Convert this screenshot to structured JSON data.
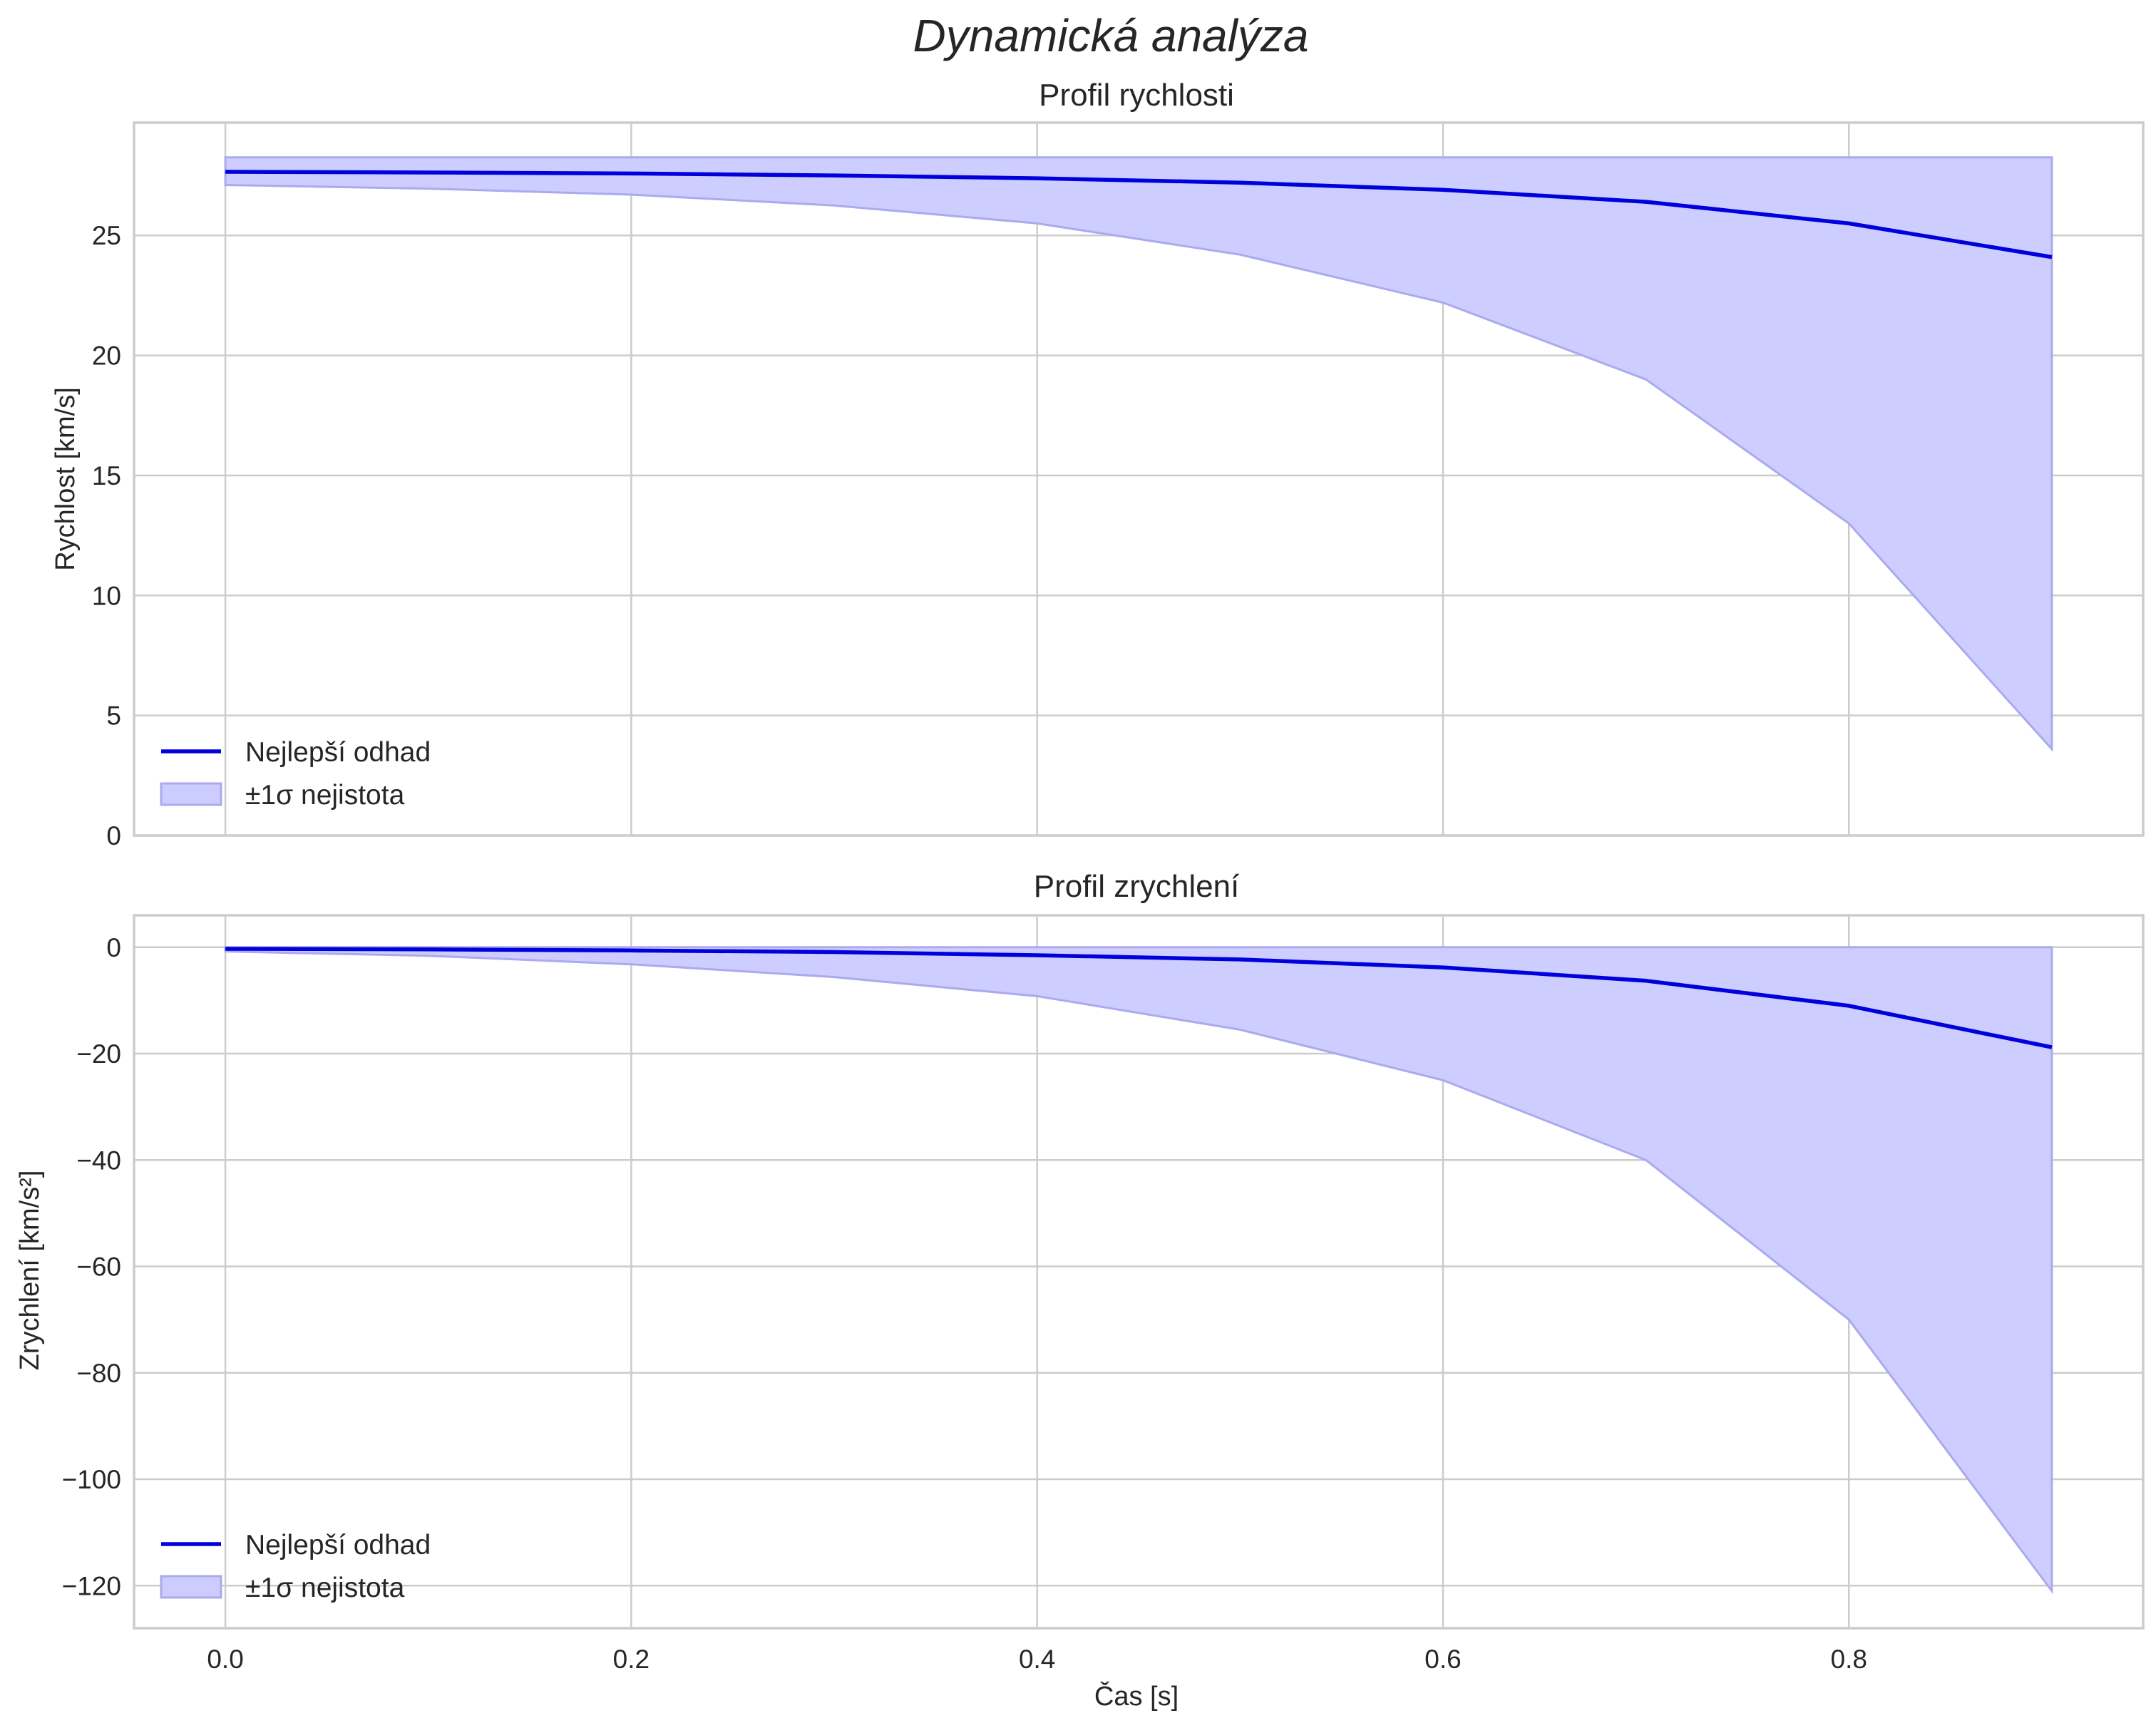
{
  "chart_data": {
    "title": "Dynamická analýza",
    "xlabel": "Čas [s]",
    "shared_x": true,
    "xlim": [
      -0.045,
      0.945
    ],
    "x_ticks": [
      "0.0",
      "0.2",
      "0.4",
      "0.6",
      "0.8"
    ],
    "colors": {
      "line": "#0000dd",
      "band_fill": "#ccccff",
      "band_edge": "#aaaaee",
      "grid": "#cccccc"
    },
    "panels": [
      {
        "type": "line",
        "title": "Profil rychlosti",
        "ylabel": "Rychlost [km/s]",
        "ylim": [
          0,
          29.7
        ],
        "y_ticks": [
          "0",
          "5",
          "10",
          "15",
          "20",
          "25"
        ],
        "legend_position": "lower-left",
        "legend": [
          "Nejlepší odhad",
          "±1σ nejistota"
        ],
        "x": [
          0.0,
          0.1,
          0.2,
          0.3,
          0.4,
          0.5,
          0.6,
          0.7,
          0.8,
          0.9
        ],
        "series": [
          {
            "name": "Nejlepší odhad",
            "values": [
              27.65,
              27.62,
              27.58,
              27.5,
              27.38,
              27.2,
              26.9,
              26.4,
              25.5,
              24.1
            ]
          },
          {
            "name": "±1σ nejistota lower",
            "values": [
              27.1,
              26.95,
              26.7,
              26.25,
              25.5,
              24.2,
              22.2,
              19.0,
              13.0,
              3.6
            ]
          },
          {
            "name": "±1σ nejistota upper",
            "values": [
              28.25,
              28.25,
              28.25,
              28.25,
              28.25,
              28.25,
              28.25,
              28.25,
              28.25,
              28.25
            ]
          }
        ]
      },
      {
        "type": "line",
        "title": "Profil zrychlení",
        "ylabel": "Zrychlení [km/s²]",
        "ylim": [
          -128,
          6
        ],
        "y_ticks": [
          "0",
          "−20",
          "−40",
          "−60",
          "−80",
          "−100",
          "−120"
        ],
        "legend_position": "lower-left",
        "legend": [
          "Nejlepší odhad",
          "±1σ nejistota"
        ],
        "x": [
          0.0,
          0.1,
          0.2,
          0.3,
          0.4,
          0.5,
          0.6,
          0.7,
          0.8,
          0.9
        ],
        "series": [
          {
            "name": "Nejlepší odhad",
            "values": [
              -0.3,
              -0.4,
              -0.6,
              -0.9,
              -1.5,
              -2.3,
              -3.8,
              -6.3,
              -11.0,
              -18.8
            ]
          },
          {
            "name": "±1σ nejistota lower",
            "values": [
              -0.8,
              -1.6,
              -3.2,
              -5.6,
              -9.2,
              -15.5,
              -25.0,
              -40.0,
              -70.0,
              -121.0
            ]
          },
          {
            "name": "±1σ nejistota upper",
            "values": [
              0,
              0,
              0,
              0,
              0,
              0,
              0,
              0,
              0,
              0
            ]
          }
        ]
      }
    ]
  }
}
